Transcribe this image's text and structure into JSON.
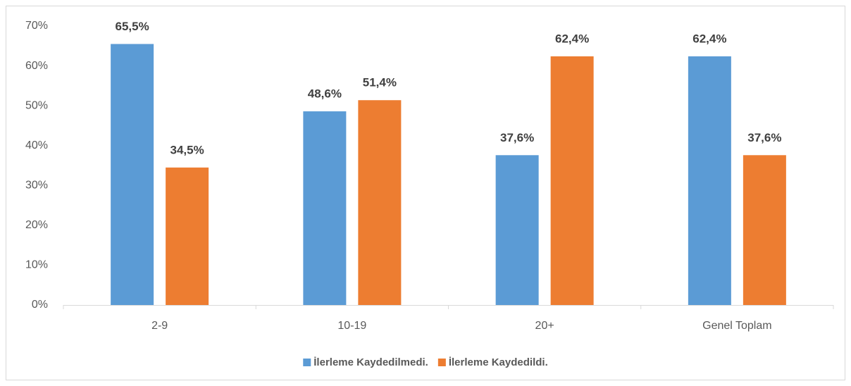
{
  "chart_data": {
    "type": "bar",
    "categories": [
      "2-9",
      "10-19",
      "20+",
      "Genel Toplam"
    ],
    "series": [
      {
        "name": "İlerleme Kaydedilmedi.",
        "color": "#5b9bd5",
        "values": [
          65.5,
          48.6,
          37.6,
          62.4
        ],
        "value_labels": [
          "65,5%",
          "48,6%",
          "37,6%",
          "62,4%"
        ]
      },
      {
        "name": "İlerleme Kaydedildi.",
        "color": "#ed7d31",
        "values": [
          34.5,
          51.4,
          62.4,
          37.6
        ],
        "value_labels": [
          "34,5%",
          "51,4%",
          "62,4%",
          "37,6%"
        ]
      }
    ],
    "ylim": [
      0,
      70
    ],
    "yticks": [
      {
        "value": 0,
        "label": "0%"
      },
      {
        "value": 10,
        "label": "10%"
      },
      {
        "value": 20,
        "label": "20%"
      },
      {
        "value": 30,
        "label": "30%"
      },
      {
        "value": 40,
        "label": "40%"
      },
      {
        "value": 50,
        "label": "50%"
      },
      {
        "value": 60,
        "label": "60%"
      },
      {
        "value": 70,
        "label": "70%"
      }
    ],
    "grid": false,
    "legend": "bottom"
  }
}
